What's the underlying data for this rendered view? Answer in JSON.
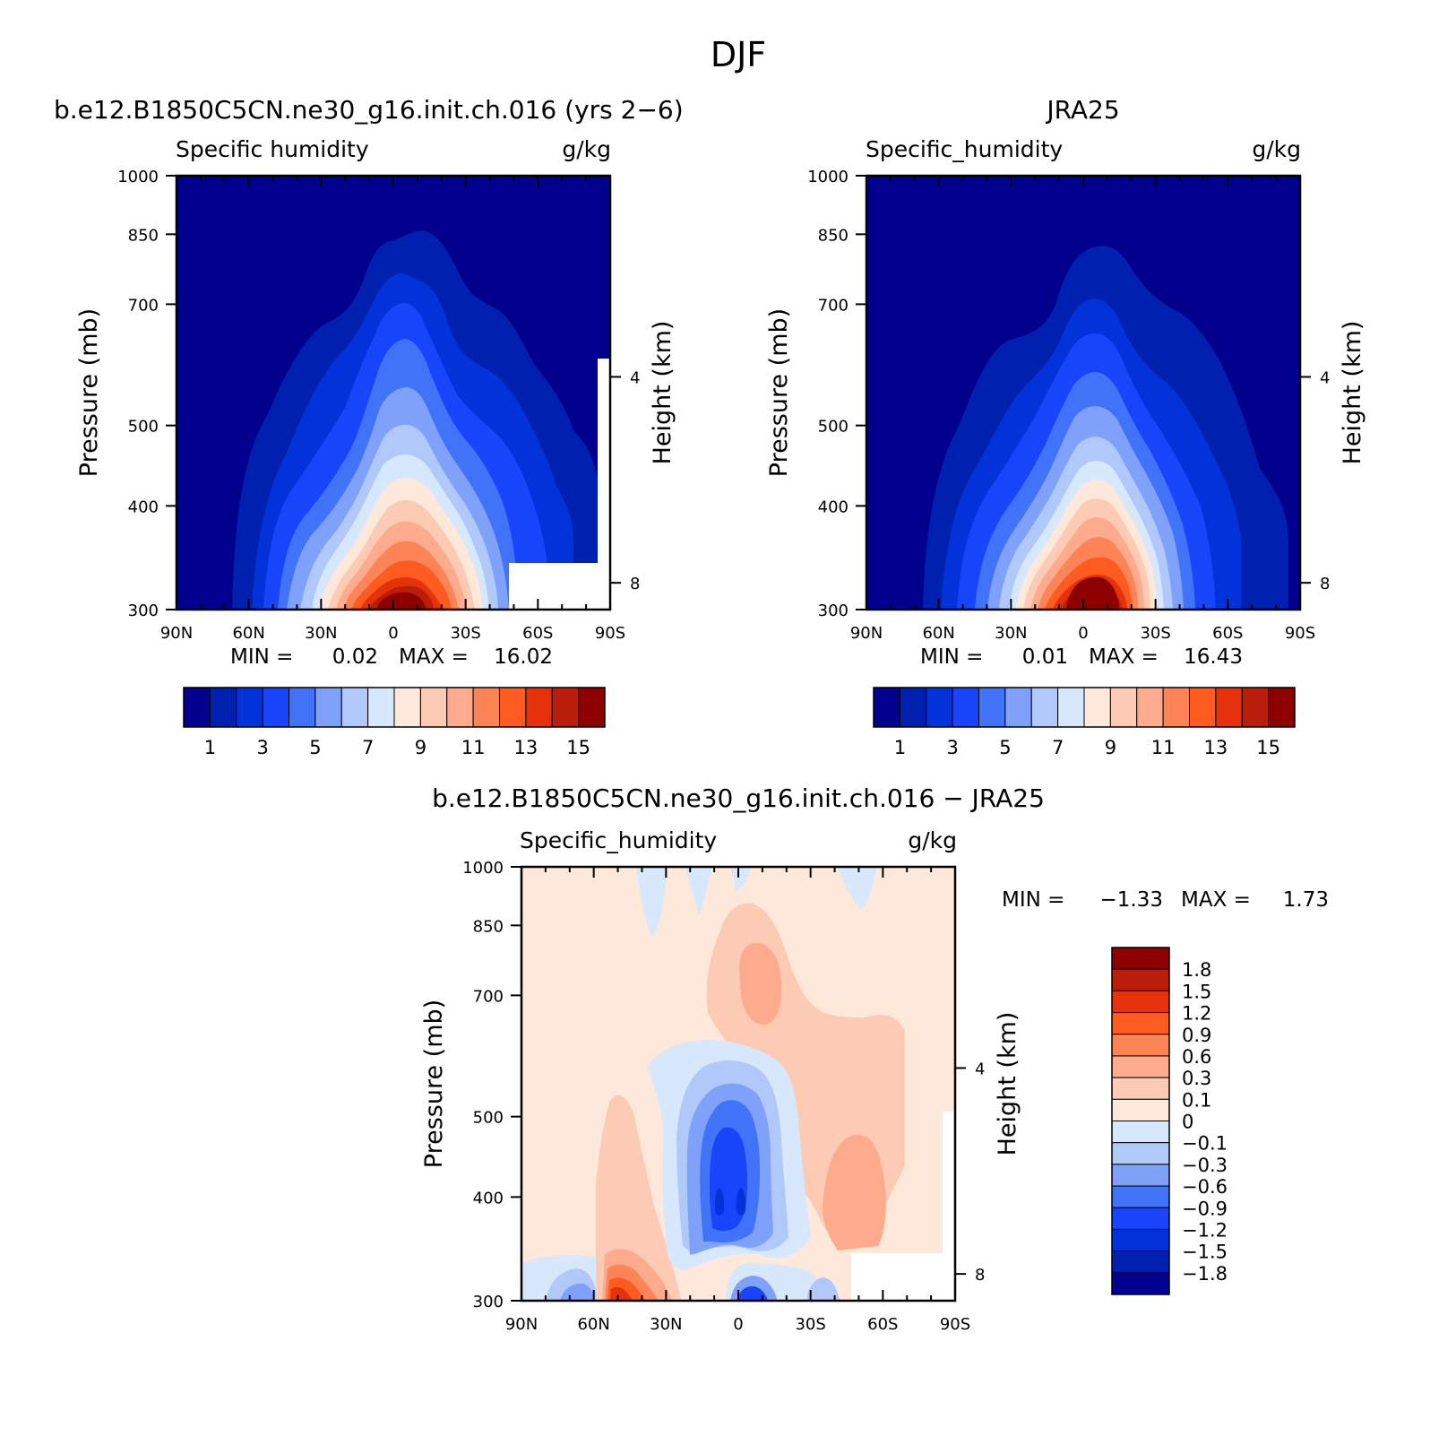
{
  "figure_title": "DJF",
  "colors": {
    "abs_levels": [
      "#00008c",
      "#0021af",
      "#0233da",
      "#1845f9",
      "#4173f9",
      "#7fa1f9",
      "#b1c8fb",
      "#d8e8fc",
      "#fde8d9",
      "#fdcab3",
      "#fdab8c",
      "#fd8457",
      "#fd5b20",
      "#e5310c",
      "#b81e09",
      "#8c0000"
    ],
    "diff_levels": [
      "#00008c",
      "#0021af",
      "#0233da",
      "#1845f9",
      "#4173f9",
      "#7fa1f9",
      "#b1c8fb",
      "#d8e8fc",
      "#fde8d9",
      "#fdcab3",
      "#fdab8c",
      "#fd8457",
      "#fd5b20",
      "#e5310c",
      "#b81e09",
      "#8c0000"
    ]
  },
  "chart_data": [
    {
      "id": "model",
      "type": "heatmap",
      "title": "b.e12.B1850C5CN.ne30_g16.init.ch.016 (yrs 2−6)",
      "left_label": "Specific humidity",
      "unit": "g/kg",
      "ylabel": "Pressure (mb)",
      "ylabel2": "Height (km)",
      "x_ticks": [
        "90N",
        "60N",
        "30N",
        "0",
        "30S",
        "60S",
        "90S"
      ],
      "x_values": [
        90,
        60,
        30,
        0,
        -30,
        -60,
        -90
      ],
      "y_ticks": [
        "300",
        "400",
        "500",
        "700",
        "850",
        "1000"
      ],
      "y_values": [
        300,
        400,
        500,
        700,
        850,
        1000
      ],
      "y2_ticks": [
        "8",
        "4"
      ],
      "y2_values": [
        8,
        4
      ],
      "ylim": [
        1000,
        300
      ],
      "xlim": [
        90,
        -90
      ],
      "y_scale": "log",
      "stats": {
        "min_label": "MIN =",
        "min": "0.02",
        "max_label": "MAX =",
        "max": "16.02"
      },
      "colorbar_labels": [
        "1",
        "3",
        "5",
        "7",
        "9",
        "11",
        "13",
        "15"
      ]
    },
    {
      "id": "obs",
      "type": "heatmap",
      "title": "JRA25",
      "left_label": "Specific_humidity",
      "unit": "g/kg",
      "ylabel": "Pressure (mb)",
      "ylabel2": "Height (km)",
      "x_ticks": [
        "90N",
        "60N",
        "30N",
        "0",
        "30S",
        "60S",
        "90S"
      ],
      "x_values": [
        90,
        60,
        30,
        0,
        -30,
        -60,
        -90
      ],
      "y_ticks": [
        "300",
        "400",
        "500",
        "700",
        "850",
        "1000"
      ],
      "y_values": [
        300,
        400,
        500,
        700,
        850,
        1000
      ],
      "y2_ticks": [
        "8",
        "4"
      ],
      "y2_values": [
        8,
        4
      ],
      "ylim": [
        1000,
        300
      ],
      "xlim": [
        90,
        -90
      ],
      "y_scale": "log",
      "stats": {
        "min_label": "MIN =",
        "min": "0.01",
        "max_label": "MAX =",
        "max": "16.43"
      },
      "colorbar_labels": [
        "1",
        "3",
        "5",
        "7",
        "9",
        "11",
        "13",
        "15"
      ]
    },
    {
      "id": "diff",
      "type": "heatmap",
      "title": "b.e12.B1850C5CN.ne30_g16.init.ch.016 − JRA25",
      "left_label": "Specific_humidity",
      "unit": "g/kg",
      "ylabel": "Pressure (mb)",
      "ylabel2": "Height (km)",
      "x_ticks": [
        "90N",
        "60N",
        "30N",
        "0",
        "30S",
        "60S",
        "90S"
      ],
      "x_values": [
        90,
        60,
        30,
        0,
        -30,
        -60,
        -90
      ],
      "y_ticks": [
        "300",
        "400",
        "500",
        "700",
        "850",
        "1000"
      ],
      "y_values": [
        300,
        400,
        500,
        700,
        850,
        1000
      ],
      "y2_ticks": [
        "8",
        "4"
      ],
      "y2_values": [
        8,
        4
      ],
      "ylim": [
        1000,
        300
      ],
      "xlim": [
        90,
        -90
      ],
      "y_scale": "log",
      "stats": {
        "min_label": "MIN =",
        "min": "−1.33",
        "max_label": "MAX =",
        "max": "1.73"
      },
      "colorbar_labels": [
        "1.8",
        "1.5",
        "1.2",
        "0.9",
        "0.6",
        "0.3",
        "0.1",
        "0",
        "−0.1",
        "−0.3",
        "−0.6",
        "−0.9",
        "−1.2",
        "−1.5",
        "−1.8"
      ]
    }
  ]
}
